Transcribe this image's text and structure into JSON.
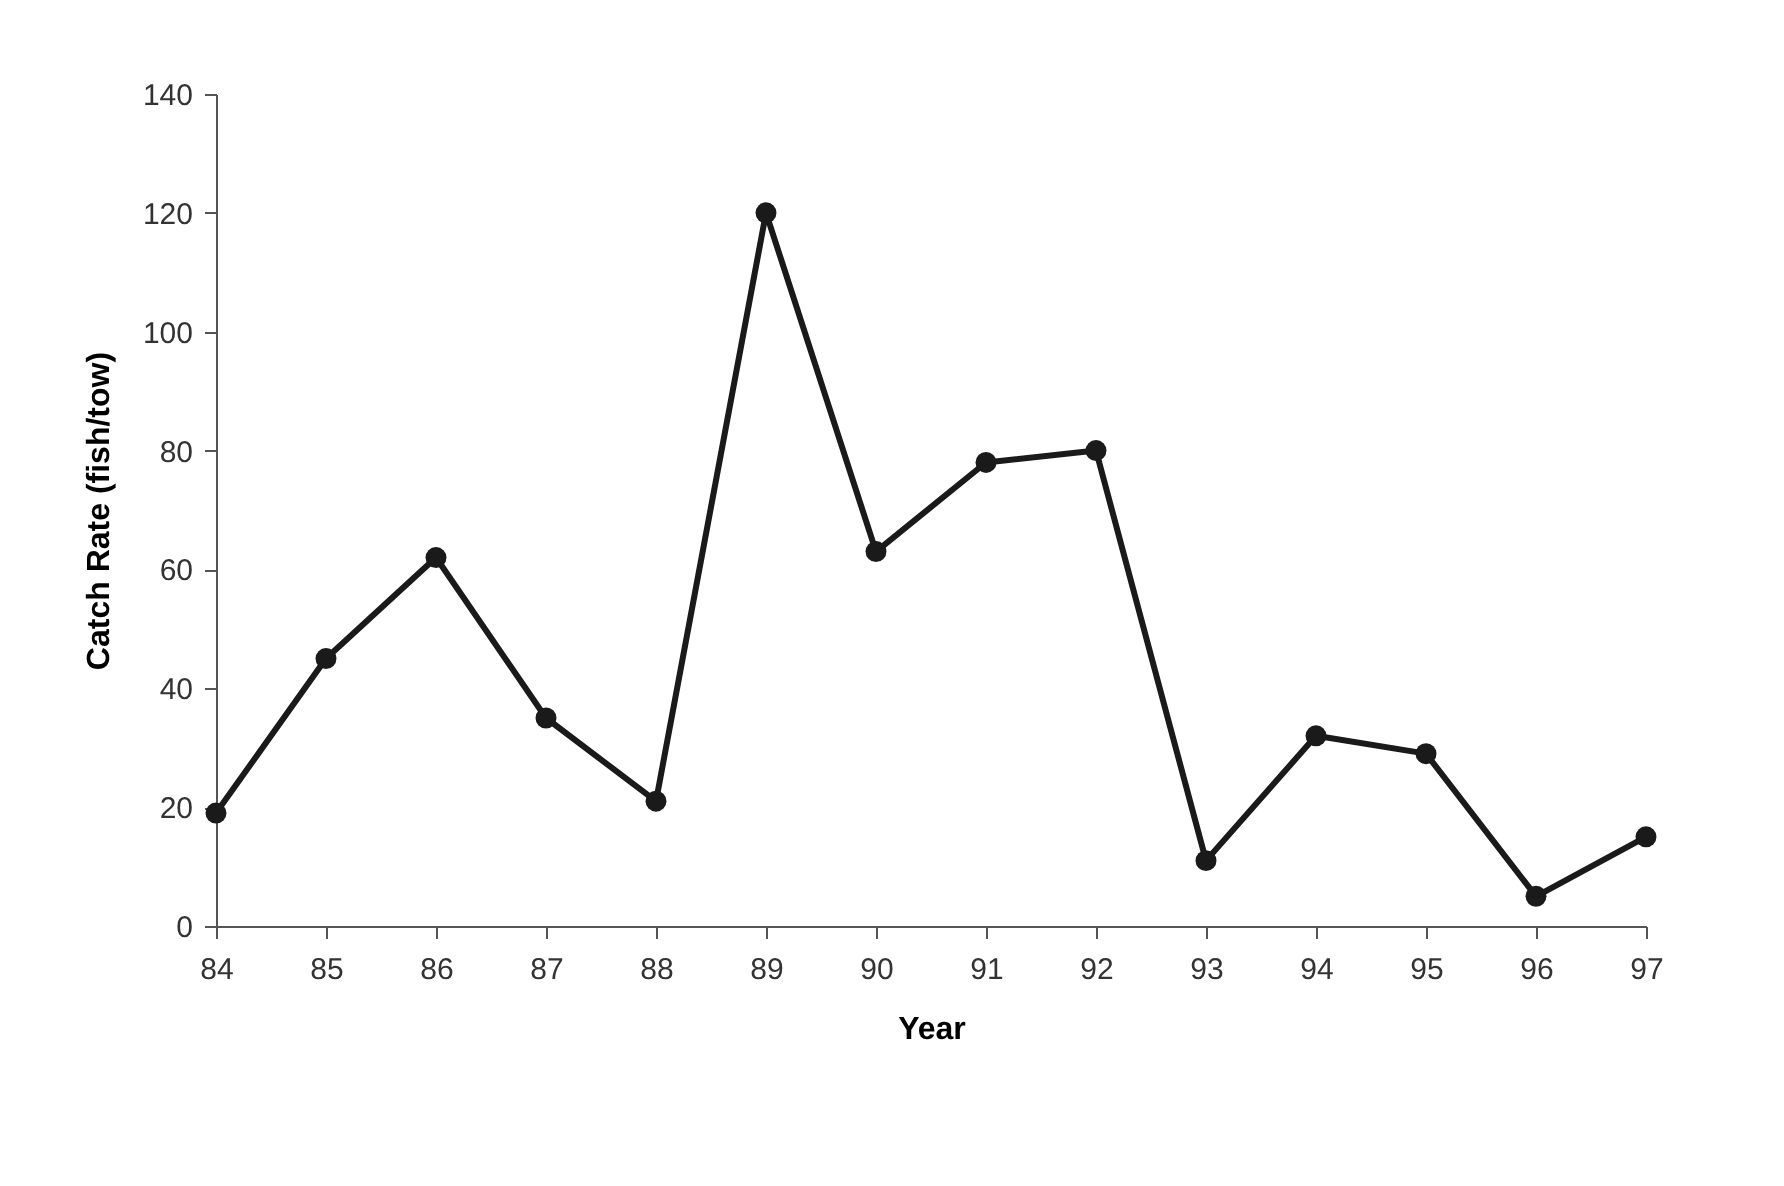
{
  "chart_data": {
    "type": "line",
    "xlabel": "Year",
    "ylabel": "Catch Rate (fish/tow)",
    "categories": [
      "84",
      "85",
      "86",
      "87",
      "88",
      "89",
      "90",
      "91",
      "92",
      "93",
      "94",
      "95",
      "96",
      "97"
    ],
    "series": [
      {
        "color": "#1a1a1a",
        "values": [
          19,
          45,
          62,
          35,
          21,
          120,
          63,
          78,
          80,
          11,
          32,
          29,
          5,
          15
        ]
      }
    ],
    "ylim": [
      0,
      140
    ],
    "yticks": [
      0,
      20,
      40,
      60,
      80,
      100,
      120,
      140
    ],
    "grid": false,
    "marker": "circle",
    "line_style": "solid"
  }
}
